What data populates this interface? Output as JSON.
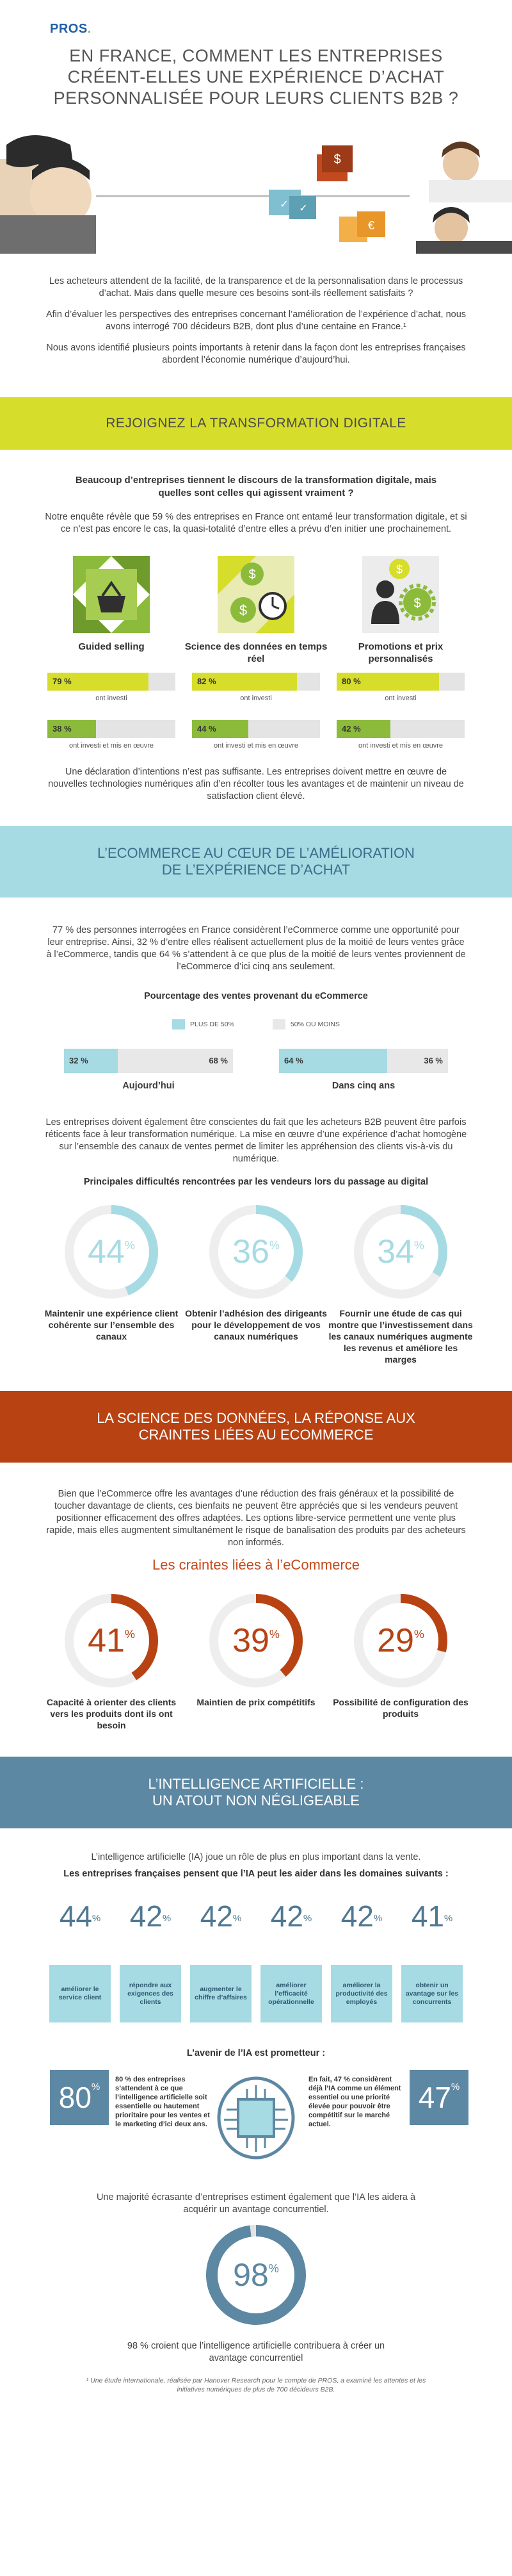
{
  "logo": "PROS",
  "title": "EN FRANCE, COMMENT LES ENTREPRISES CRÉENT-ELLES UNE EXPÉRIENCE D’ACHAT PERSONNALISÉE POUR LEURS CLIENTS B2B ?",
  "intro": [
    "Les acheteurs attendent de la facilité, de la transparence et de la personnalisation dans le processus d’achat. Mais dans quelle mesure ces besoins sont-ils réellement satisfaits ?",
    "Afin d’évaluer les perspectives des entreprises concernant l’amélioration de l’expérience d’achat, nous avons interrogé 700 décideurs B2B, dont plus d’une centaine en France.¹",
    "Nous avons identifié plusieurs points importants à retenir dans la façon dont les entreprises françaises abordent l’économie numérique d’aujourd’hui."
  ],
  "section1": {
    "title": "REJOIGNEZ LA TRANSFORMATION DIGITALE",
    "question": "Beaucoup d’entreprises tiennent le discours de la transformation digitale, mais quelles sont celles qui agissent vraiment ?",
    "text": "Notre enquête révèle que 59 % des entreprises en France ont entamé leur transformation digitale, et si ce n’est pas encore le cas, la quasi-totalité d’entre elles a prévu d’en initier une prochainement.",
    "invested_label": "ont investi",
    "implemented_label": "ont investi et mis en œuvre",
    "items": [
      {
        "label": "Guided selling",
        "invested": "79 %",
        "invested_value": 79,
        "implemented": "38 %",
        "implemented_value": 38
      },
      {
        "label": "Science des données en temps réel",
        "invested": "82 %",
        "invested_value": 82,
        "implemented": "44 %",
        "implemented_value": 44
      },
      {
        "label": "Promotions et prix personnalisés",
        "invested": "80 %",
        "invested_value": 80,
        "implemented": "42 %",
        "implemented_value": 42
      }
    ],
    "closing": "Une déclaration d’intentions n’est pas suffisante. Les entreprises doivent mettre en œuvre de nouvelles technologies numériques afin d’en récolter tous les avantages et de maintenir un niveau de satisfaction client élevé."
  },
  "section2": {
    "title_line1": "L’ECOMMERCE AU CŒUR DE L’AMÉLIORATION",
    "title_line2": "DE L’EXPÉRIENCE D’ACHAT",
    "text": "77 % des personnes interrogées en France considèrent l’eCommerce comme une opportunité pour leur entreprise. Ainsi, 32 % d’entre elles réalisent actuellement plus de la moitié de leurs ventes grâce à l’eCommerce, tandis que 64 % s’attendent à ce que plus de la moitié de leurs ventes proviennent de l’eCommerce d’ici cinq ans seulement.",
    "chart_title": "Pourcentage des ventes provenant du eCommerce",
    "legend_a": "PLUS DE 50%",
    "legend_b": "50% OU MOINS",
    "splits": [
      {
        "label": "Aujourd’hui",
        "a": "32 %",
        "a_value": 32,
        "b": "68 %",
        "b_value": 68
      },
      {
        "label": "Dans cinq ans",
        "a": "64 %",
        "a_value": 64,
        "b": "36 %",
        "b_value": 36
      }
    ],
    "text2": "Les entreprises doivent également être conscientes du fait que les acheteurs B2B peuvent être parfois réticents face à leur transformation numérique. La mise en œuvre d’une expérience d’achat homogène sur l’ensemble des canaux de ventes permet de limiter les appréhension des clients vis-à-vis du numérique.",
    "difficulties_title": "Principales difficultés rencontrées par les vendeurs lors du passage au digital",
    "rings": [
      {
        "value": "44",
        "value_num": 44,
        "label": "Maintenir une expérience client cohérente sur l’ensemble des canaux"
      },
      {
        "value": "36",
        "value_num": 36,
        "label": "Obtenir l’adhésion des dirigeants pour le développement de vos canaux numériques"
      },
      {
        "value": "34",
        "value_num": 34,
        "label": "Fournir une étude de cas qui montre que l’investissement dans les canaux numériques augmente les revenus et améliore les marges"
      }
    ]
  },
  "section3": {
    "title_line1": "LA SCIENCE DES DONNÉES, LA RÉPONSE AUX",
    "title_line2": "CRAINTES LIÉES AU ECOMMERCE",
    "text": "Bien que l’eCommerce offre les avantages d’une réduction des frais généraux et la possibilité de toucher davantage de clients, ces bienfaits ne peuvent être appréciés que si les vendeurs peuvent positionner efficacement des offres adaptées. Les options libre-service permettent une vente plus rapide, mais elles augmentent simultanément le risque de banalisation des produits par des acheteurs non informés.",
    "subtitle": "Les craintes liées à l’eCommerce",
    "rings": [
      {
        "value": "41",
        "value_num": 41,
        "label": "Capacité à orienter des clients vers les produits dont ils ont besoin"
      },
      {
        "value": "39",
        "value_num": 39,
        "label": "Maintien de prix compétitifs"
      },
      {
        "value": "29",
        "value_num": 29,
        "label": "Possibilité de configuration des produits"
      }
    ]
  },
  "section4": {
    "title_line1": "L’INTELLIGENCE ARTIFICIELLE :",
    "title_line2": "UN ATOUT NON NÉGLIGEABLE",
    "text": "L’intelligence artificielle (IA) joue un rôle de plus en plus important dans la vente.",
    "question": "Les entreprises françaises pensent que l’IA peut les aider dans les domaines suivants :",
    "items": [
      {
        "value": "44",
        "label": "améliorer le service client"
      },
      {
        "value": "42",
        "label": "répondre aux exigences des clients"
      },
      {
        "value": "42",
        "label": "augmenter le chiffre d’affaires"
      },
      {
        "value": "42",
        "label": "améliorer l’efficacité opérationnelle"
      },
      {
        "value": "42",
        "label": "améliorer la productivité des employés"
      },
      {
        "value": "41",
        "label": "obtenir un avantage sur les concurrents"
      }
    ],
    "future_title": "L’avenir de l’IA est prometteur :",
    "left_value": "80",
    "left_text": "80 % des entreprises s’attendent à ce que l’intelligence artificielle soit essentielle ou hautement prioritaire pour les ventes et le marketing d’ici deux ans.",
    "right_value": "47",
    "right_text": "En fait, 47 % considèrent déjà l’IA comme un élément essentiel ou une priorité élevée pour pouvoir être compétitif sur le marché actuel.",
    "majority_text": "Une majorité écrasante d’entreprises estiment également que l’IA les aidera à acquérir un avantage concurrentiel.",
    "big_value": "98",
    "big_value_num": 98,
    "big_text": "98 % croient que l’intelligence artificielle contribuera à créer un avantage concurrentiel",
    "footnote": "¹ Une étude internationale, réalisée par Hanover Research pour le compte de PROS, a examiné les attentes et les initiatives numériques de plus de 700 décideurs B2B."
  },
  "colors": {
    "yellow": "#d7dd2b",
    "light_blue": "#a6dbe4",
    "red": "#b84212",
    "navy": "#5d88a3",
    "green": "#8cbb3c",
    "orange": "#f39c2f"
  }
}
